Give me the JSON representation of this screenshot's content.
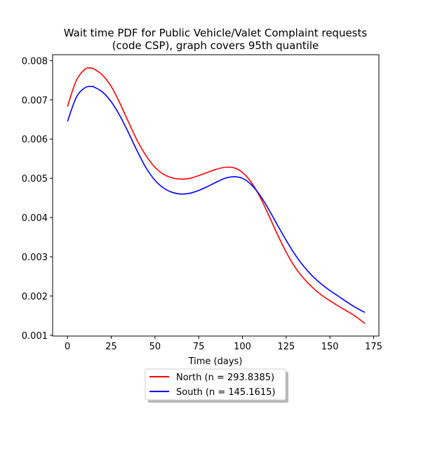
{
  "chart_data": {
    "type": "line",
    "title_line1": "Wait time PDF for Public Vehicle/Valet Complaint  requests",
    "title_line2": "(code CSP), graph covers 95th quantile",
    "xlabel": "Time (days)",
    "ylabel": "",
    "xlim": [
      -8.5,
      178
    ],
    "ylim": [
      0.00098,
      0.00815
    ],
    "xticks": [
      0,
      25,
      50,
      75,
      100,
      125,
      150,
      175
    ],
    "xtick_labels": [
      "0",
      "25",
      "50",
      "75",
      "100",
      "125",
      "150",
      "175"
    ],
    "yticks": [
      0.001,
      0.002,
      0.003,
      0.004,
      0.005,
      0.006,
      0.007,
      0.008
    ],
    "ytick_labels": [
      "0.001",
      "0.002",
      "0.003",
      "0.004",
      "0.005",
      "0.006",
      "0.007",
      "0.008"
    ],
    "grid": false,
    "legend_placement": "bottom-center-outside",
    "series": [
      {
        "name": "North (n = 293.8385)",
        "color": "#ff0000",
        "x": [
          0,
          5,
          10,
          13,
          15,
          20,
          25,
          30,
          35,
          40,
          45,
          50,
          55,
          60,
          65,
          70,
          75,
          80,
          85,
          90,
          95,
          100,
          105,
          110,
          115,
          120,
          125,
          130,
          135,
          140,
          145,
          150,
          155,
          160,
          165,
          170
        ],
        "y": [
          0.00683,
          0.00749,
          0.00778,
          0.00781,
          0.00779,
          0.00763,
          0.00734,
          0.00691,
          0.00642,
          0.00595,
          0.00557,
          0.00528,
          0.0051,
          0.00501,
          0.00498,
          0.005,
          0.00507,
          0.00515,
          0.00523,
          0.00528,
          0.00527,
          0.00515,
          0.0049,
          0.00453,
          0.00406,
          0.00357,
          0.00312,
          0.00274,
          0.00245,
          0.00222,
          0.00203,
          0.00188,
          0.00174,
          0.00161,
          0.00147,
          0.0013
        ]
      },
      {
        "name": "South (n = 145.1615)",
        "color": "#0000ff",
        "x": [
          0,
          5,
          10,
          14,
          15,
          20,
          25,
          30,
          35,
          40,
          45,
          50,
          55,
          60,
          65,
          70,
          75,
          80,
          85,
          90,
          95,
          100,
          105,
          110,
          115,
          120,
          125,
          130,
          135,
          140,
          145,
          150,
          155,
          160,
          165,
          170
        ],
        "y": [
          0.00645,
          0.00706,
          0.00731,
          0.00734,
          0.00733,
          0.0072,
          0.00695,
          0.00659,
          0.00615,
          0.00568,
          0.00526,
          0.00495,
          0.00475,
          0.00464,
          0.0046,
          0.00462,
          0.00469,
          0.00479,
          0.0049,
          0.005,
          0.00504,
          0.005,
          0.00484,
          0.00457,
          0.00421,
          0.00381,
          0.00342,
          0.00306,
          0.00276,
          0.00251,
          0.00231,
          0.00214,
          0.00199,
          0.00184,
          0.0017,
          0.00158
        ]
      }
    ]
  }
}
